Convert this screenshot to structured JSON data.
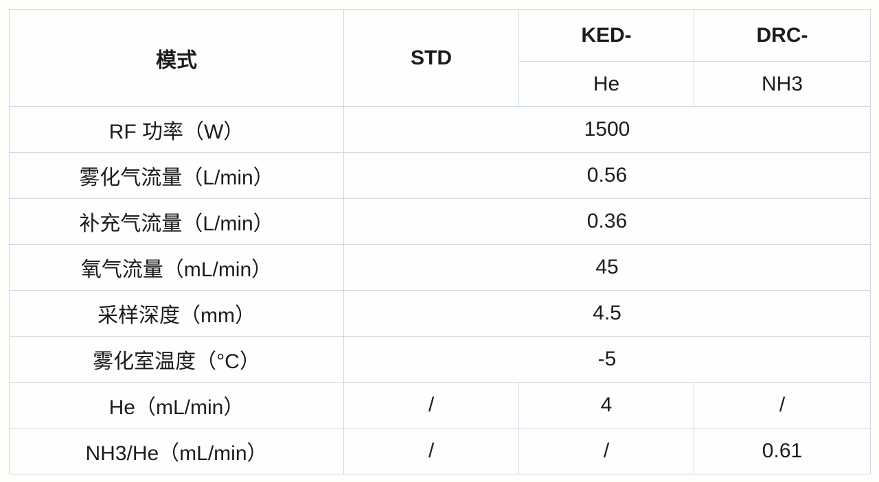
{
  "table": {
    "header": {
      "col_mode": "模式",
      "col_std": "STD",
      "col_ked": "KED-",
      "col_drc": "DRC-",
      "sub_ked": "He",
      "sub_drc": "NH3"
    },
    "rows": [
      {
        "label": "RF 功率（W）",
        "merged": "1500"
      },
      {
        "label": "雾化气流量（L/min）",
        "merged": "0.56"
      },
      {
        "label": "补充气流量（L/min）",
        "merged": "0.36"
      },
      {
        "label": "氧气流量（mL/min）",
        "merged": "45"
      },
      {
        "label": "采样深度（mm）",
        "merged": "4.5"
      },
      {
        "label": "雾化室温度（°C）",
        "merged": "-5"
      },
      {
        "label": "He（mL/min）",
        "std": "/",
        "ked": "4",
        "drc": "/"
      },
      {
        "label": "NH3/He（mL/min）",
        "std": "/",
        "ked": "/",
        "drc": "0.61"
      }
    ],
    "colors": {
      "thin_border": "#cdd9e4",
      "accent_line": "#a2b8d4",
      "text": "#1c1c1c",
      "background": "#fffefb"
    }
  }
}
